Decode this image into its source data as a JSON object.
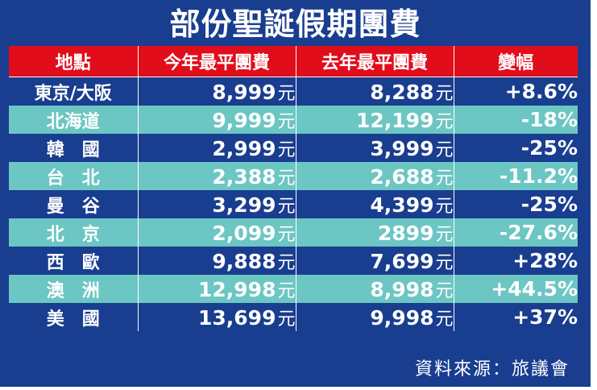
{
  "title": "部份聖誕假期團費",
  "headers": [
    "地點",
    "今年最平團費",
    "去年最平團費",
    "變幅"
  ],
  "currency_unit": "元",
  "rows": [
    {
      "city": "東京/大阪",
      "this_year": "8,999",
      "last_year": "8,288",
      "change": "+8.6%"
    },
    {
      "city": "北海道",
      "this_year": "9,999",
      "last_year": "12,199",
      "change": "-18%"
    },
    {
      "city": "韓　國",
      "this_year": "2,999",
      "last_year": "3,999",
      "change": "-25%"
    },
    {
      "city": "台　北",
      "this_year": "2,388",
      "last_year": "2,688",
      "change": "-11.2%"
    },
    {
      "city": "曼　谷",
      "this_year": "3,299",
      "last_year": "4,399",
      "change": "-25%"
    },
    {
      "city": "北　京",
      "this_year": "2,099",
      "last_year": "2899",
      "change": "-27.6%"
    },
    {
      "city": "西　歐",
      "this_year": "9,888",
      "last_year": "7,699",
      "change": "+28%"
    },
    {
      "city": "澳　洲",
      "this_year": "12,998",
      "last_year": "8,998",
      "change": "+44.5%"
    },
    {
      "city": "美　國",
      "this_year": "13,699",
      "last_year": "9,998",
      "change": "+37%"
    }
  ],
  "source": "資料來源：旅議會",
  "colors": {
    "background": "#193d8f",
    "header": "#e10d1b",
    "stripe": "#6cc6c3",
    "text": "#ffffff"
  }
}
